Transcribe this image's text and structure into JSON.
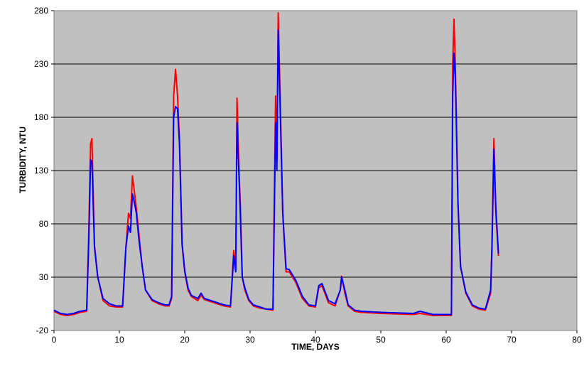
{
  "chart_data": {
    "type": "line",
    "title": "",
    "xlabel": "TIME, DAYS",
    "ylabel": "TURBIDITY, NTU",
    "xlim": [
      0,
      80
    ],
    "ylim": [
      -20,
      280
    ],
    "x_ticks": [
      0,
      10,
      20,
      30,
      40,
      50,
      60,
      70,
      80
    ],
    "y_ticks": [
      -20,
      30,
      80,
      130,
      180,
      230,
      280
    ],
    "grid": true,
    "legend": "none",
    "plot_background": "#c0c0c0",
    "series": [
      {
        "color": "#ff0000",
        "x": [
          0,
          1,
          2,
          3,
          4,
          5,
          5.3,
          5.6,
          5.8,
          6.2,
          6.7,
          7.5,
          8.5,
          9.5,
          10.5,
          11,
          11.4,
          11.7,
          12,
          12.3,
          12.6,
          13,
          13.5,
          14,
          15,
          16,
          17,
          17.6,
          18,
          18.3,
          18.6,
          18.9,
          19.2,
          19.6,
          20,
          20.5,
          21,
          22,
          22.5,
          23,
          24,
          25,
          26,
          27,
          27.5,
          27.8,
          28,
          28.3,
          28.5,
          28.8,
          29.2,
          29.8,
          30.5,
          31.5,
          32.5,
          33.5,
          33.9,
          34.1,
          34.3,
          34.6,
          35,
          35.5,
          36,
          37,
          38,
          39,
          40,
          40.5,
          41,
          42,
          43,
          43.8,
          44,
          44.5,
          45,
          46,
          47,
          50,
          55,
          56,
          58,
          60,
          60.8,
          61,
          61.2,
          61.4,
          61.8,
          62.2,
          63,
          64,
          65,
          66,
          66.8,
          67,
          67.3,
          67.6,
          68
        ],
        "y": [
          -2,
          -5,
          -6,
          -5,
          -3,
          -2,
          68,
          155,
          160,
          60,
          30,
          8,
          3,
          2,
          2,
          58,
          90,
          85,
          125,
          110,
          95,
          70,
          40,
          18,
          8,
          5,
          3,
          3,
          10,
          200,
          225,
          200,
          160,
          60,
          35,
          18,
          12,
          8,
          13,
          9,
          7,
          5,
          3,
          2,
          55,
          40,
          198,
          130,
          100,
          30,
          18,
          8,
          3,
          1,
          0,
          -1,
          200,
          140,
          278,
          200,
          90,
          35,
          35,
          25,
          10,
          3,
          2,
          20,
          22,
          6,
          3,
          18,
          31,
          15,
          3,
          -2,
          -3,
          -4,
          -5,
          -4,
          -6,
          -6,
          -6,
          230,
          272,
          230,
          100,
          40,
          15,
          3,
          0,
          -1,
          15,
          60,
          160,
          90,
          50
        ],
        "name": ""
      },
      {
        "color": "#0000ff",
        "x": [
          0,
          1,
          2,
          3,
          4,
          5,
          5.3,
          5.6,
          5.8,
          6.2,
          6.7,
          7.5,
          8.5,
          9.5,
          10.5,
          11,
          11.4,
          11.7,
          12,
          12.3,
          12.6,
          13,
          13.5,
          14,
          15,
          16,
          17,
          17.6,
          18,
          18.3,
          18.6,
          18.9,
          19.2,
          19.6,
          20,
          20.5,
          21,
          22,
          22.5,
          23,
          24,
          25,
          26,
          27,
          27.5,
          27.8,
          28,
          28.3,
          28.5,
          28.8,
          29.2,
          29.8,
          30.5,
          31.5,
          32.5,
          33.5,
          33.9,
          34.1,
          34.3,
          34.6,
          35,
          35.5,
          36,
          37,
          38,
          39,
          40,
          40.5,
          41,
          42,
          43,
          43.8,
          44,
          44.5,
          45,
          46,
          47,
          50,
          55,
          56,
          58,
          60,
          60.8,
          61,
          61.2,
          61.4,
          61.8,
          62.2,
          63,
          64,
          65,
          66,
          66.8,
          67,
          67.3,
          67.6,
          68
        ],
        "y": [
          -1,
          -4,
          -5,
          -4,
          -2,
          -1,
          60,
          140,
          138,
          58,
          30,
          10,
          5,
          3,
          3,
          58,
          78,
          72,
          108,
          100,
          90,
          65,
          40,
          18,
          9,
          6,
          4,
          4,
          12,
          180,
          190,
          188,
          155,
          62,
          36,
          20,
          13,
          10,
          15,
          10,
          8,
          6,
          4,
          3,
          50,
          35,
          175,
          125,
          90,
          30,
          20,
          9,
          4,
          2,
          0,
          0,
          175,
          130,
          262,
          190,
          90,
          38,
          37,
          27,
          12,
          4,
          3,
          22,
          24,
          8,
          5,
          18,
          30,
          18,
          4,
          -1,
          -2,
          -3,
          -4,
          -2,
          -5,
          -5,
          -5,
          200,
          240,
          218,
          100,
          40,
          16,
          4,
          1,
          0,
          18,
          55,
          150,
          95,
          52
        ],
        "name": ""
      }
    ]
  }
}
